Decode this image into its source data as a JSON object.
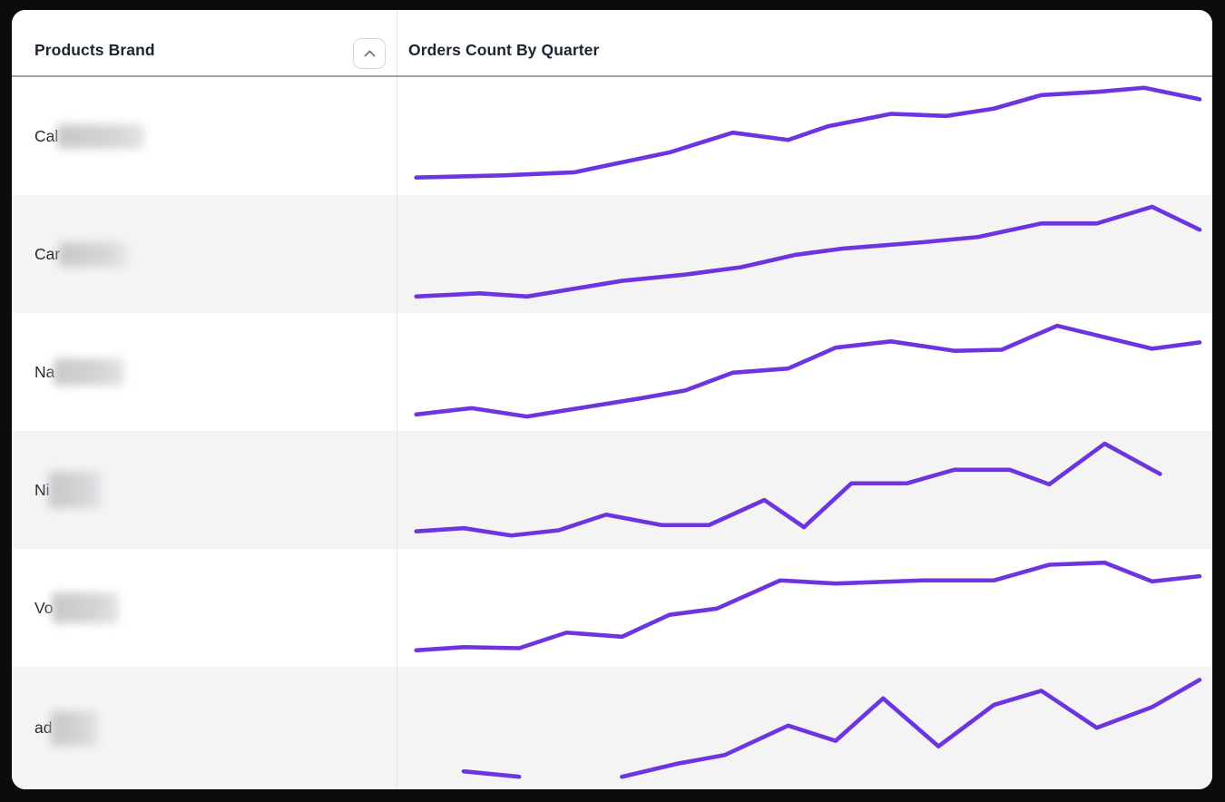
{
  "window": {
    "frame_color": "#0B0C0E",
    "content_bg": "#FFFFFF"
  },
  "colors": {
    "accent_line": "#6C35DF",
    "alt_row_bg": "#F4F4F5",
    "header_underline": "#9BA3AD",
    "column_divider": "#E4E5E9",
    "header_text": "#1C2430",
    "body_text": "#26292E",
    "sort_button_border": "#D3D7DD",
    "sort_icon_color": "#6F7680"
  },
  "table": {
    "header": {
      "brand_column_label": "Products Brand",
      "chart_column_label": "Orders Count By Quarter",
      "sort_icon": "chevron-up-icon"
    },
    "rows": [
      {
        "brand_visible_text": "Cal",
        "brand_rest_redacted": true,
        "redaction_size": {
          "w": 96,
          "h": 27
        }
      },
      {
        "brand_visible_text": "Car",
        "brand_rest_redacted": true,
        "redaction_size": {
          "w": 74,
          "h": 27
        }
      },
      {
        "brand_visible_text": "Na",
        "brand_rest_redacted": true,
        "redaction_size": {
          "w": 78,
          "h": 30
        }
      },
      {
        "brand_visible_text": "Ni",
        "brand_rest_redacted": true,
        "redaction_size": {
          "w": 58,
          "h": 40
        }
      },
      {
        "brand_visible_text": "Vo",
        "brand_rest_redacted": true,
        "redaction_size": {
          "w": 74,
          "h": 34
        }
      },
      {
        "brand_visible_text": "ad",
        "brand_rest_redacted": true,
        "redaction_size": {
          "w": 52,
          "h": 38
        }
      }
    ]
  },
  "chart_data": [
    {
      "type": "line",
      "row_label": "Cal (rest redacted)",
      "title": "Orders Count By Quarter",
      "axes_visible": false,
      "legend": "none",
      "line_color": "#6C35DF",
      "point_format": "[x_percent_across_cell, relative_value_percent]",
      "segments": [
        [
          [
            1,
            9
          ],
          [
            12,
            11
          ],
          [
            21,
            14
          ],
          [
            26,
            22
          ],
          [
            33,
            33
          ],
          [
            41,
            52
          ],
          [
            48,
            45
          ],
          [
            53,
            58
          ],
          [
            61,
            70
          ],
          [
            68,
            68
          ],
          [
            74,
            75
          ],
          [
            80,
            88
          ],
          [
            87,
            91
          ],
          [
            93,
            95
          ],
          [
            100,
            84
          ]
        ]
      ]
    },
    {
      "type": "line",
      "row_label": "Car (rest redacted)",
      "title": "Orders Count By Quarter",
      "axes_visible": false,
      "legend": "none",
      "line_color": "#6C35DF",
      "point_format": "[x_percent_across_cell, relative_value_percent]",
      "segments": [
        [
          [
            1,
            8
          ],
          [
            9,
            11
          ],
          [
            15,
            8
          ],
          [
            27,
            23
          ],
          [
            35,
            29
          ],
          [
            42,
            36
          ],
          [
            49,
            48
          ],
          [
            55,
            54
          ],
          [
            65,
            60
          ],
          [
            72,
            65
          ],
          [
            80,
            78
          ],
          [
            87,
            78
          ],
          [
            94,
            94
          ],
          [
            100,
            72
          ]
        ]
      ]
    },
    {
      "type": "line",
      "row_label": "Na (rest redacted)",
      "title": "Orders Count By Quarter",
      "axes_visible": false,
      "legend": "none",
      "line_color": "#6C35DF",
      "point_format": "[x_percent_across_cell, relative_value_percent]",
      "segments": [
        [
          [
            1,
            8
          ],
          [
            8,
            14
          ],
          [
            15,
            6
          ],
          [
            29,
            23
          ],
          [
            35,
            31
          ],
          [
            41,
            48
          ],
          [
            48,
            52
          ],
          [
            54,
            72
          ],
          [
            61,
            78
          ],
          [
            69,
            69
          ],
          [
            75,
            70
          ],
          [
            82,
            93
          ],
          [
            94,
            71
          ],
          [
            100,
            77
          ]
        ]
      ]
    },
    {
      "type": "line",
      "row_label": "Ni (rest redacted)",
      "title": "Orders Count By Quarter",
      "axes_visible": false,
      "legend": "none",
      "line_color": "#6C35DF",
      "point_format": "[x_percent_across_cell, relative_value_percent]",
      "segments": [
        [
          [
            1,
            9
          ],
          [
            7,
            12
          ],
          [
            13,
            5
          ],
          [
            19,
            10
          ],
          [
            25,
            25
          ],
          [
            32,
            15
          ],
          [
            38,
            15
          ],
          [
            45,
            39
          ],
          [
            50,
            13
          ],
          [
            56,
            55
          ],
          [
            63,
            55
          ],
          [
            69,
            68
          ],
          [
            76,
            68
          ],
          [
            81,
            54
          ],
          [
            88,
            93
          ],
          [
            95,
            64
          ]
        ]
      ]
    },
    {
      "type": "line",
      "row_label": "Vo (rest redacted)",
      "title": "Orders Count By Quarter",
      "axes_visible": false,
      "legend": "none",
      "line_color": "#6C35DF",
      "point_format": "[x_percent_across_cell, relative_value_percent]",
      "segments": [
        [
          [
            1,
            8
          ],
          [
            7,
            11
          ],
          [
            14,
            10
          ],
          [
            20,
            25
          ],
          [
            27,
            21
          ],
          [
            33,
            42
          ],
          [
            39,
            48
          ],
          [
            47,
            75
          ],
          [
            54,
            72
          ],
          [
            65,
            75
          ],
          [
            74,
            75
          ],
          [
            81,
            90
          ],
          [
            88,
            92
          ],
          [
            94,
            74
          ],
          [
            100,
            79
          ]
        ]
      ]
    },
    {
      "type": "line",
      "row_label": "ad (rest redacted)",
      "title": "Orders Count By Quarter",
      "axes_visible": false,
      "legend": "none",
      "line_color": "#6C35DF",
      "note": "series has a gap (missing values) between the first short segment and the rest",
      "point_format": "[x_percent_across_cell, relative_value_percent]",
      "segments": [
        [
          [
            7,
            9
          ],
          [
            14,
            4
          ]
        ],
        [
          [
            27,
            4
          ],
          [
            34,
            16
          ],
          [
            40,
            24
          ],
          [
            48,
            51
          ],
          [
            54,
            37
          ],
          [
            60,
            76
          ],
          [
            67,
            32
          ],
          [
            74,
            70
          ],
          [
            80,
            83
          ],
          [
            87,
            49
          ],
          [
            94,
            68
          ],
          [
            100,
            93
          ]
        ]
      ]
    }
  ]
}
